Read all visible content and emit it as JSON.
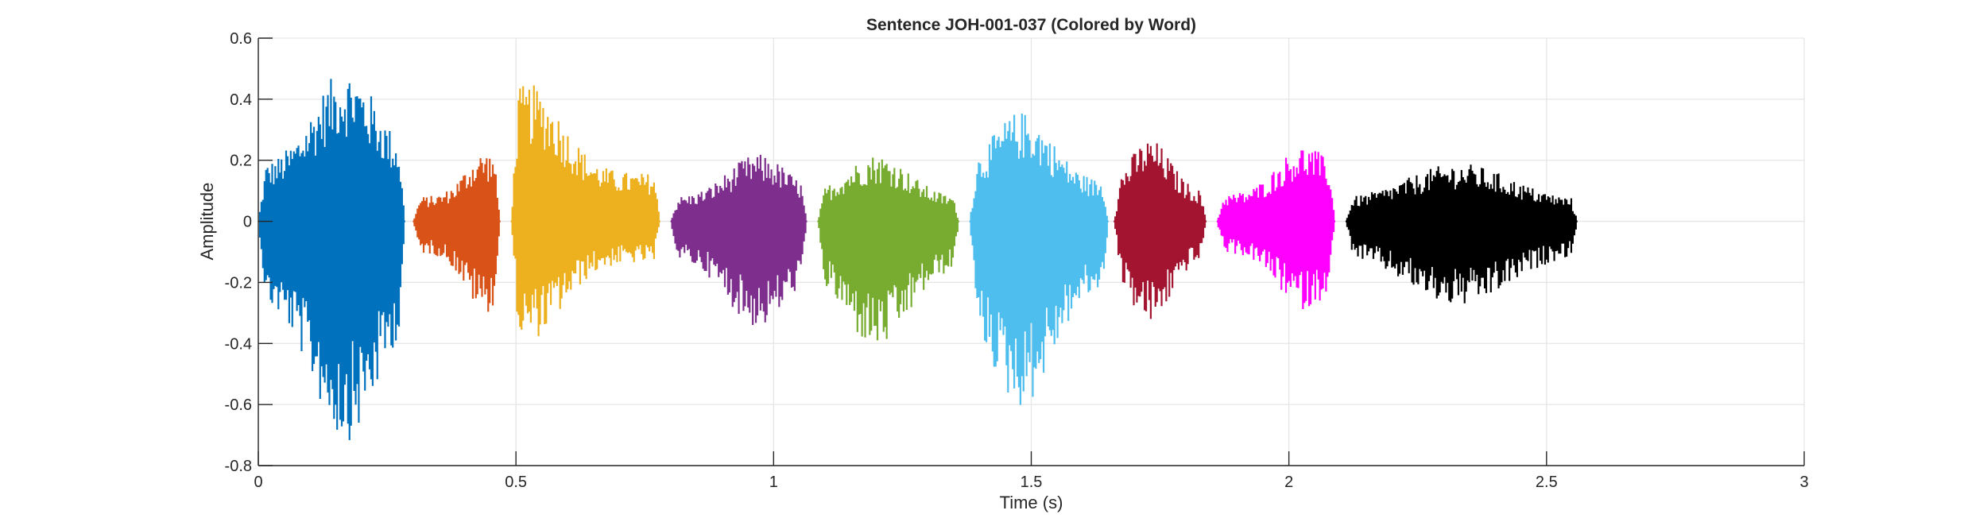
{
  "chart_data": {
    "type": "line",
    "title": "Sentence JOH-001-037 (Colored by Word)",
    "xlabel": "Time (s)",
    "ylabel": "Amplitude",
    "xlim": [
      0,
      3
    ],
    "ylim": [
      -0.8,
      0.6
    ],
    "xticks": [
      0,
      0.5,
      1,
      1.5,
      2,
      2.5,
      3
    ],
    "xtick_labels": [
      "0",
      "0.5",
      "1",
      "1.5",
      "2",
      "2.5",
      "3"
    ],
    "yticks": [
      0.6,
      0.4,
      0.2,
      0,
      -0.2,
      -0.4,
      -0.6,
      -0.8
    ],
    "ytick_labels": [
      "0.6",
      "0.4",
      "0.2",
      "0",
      "-0.2",
      "-0.4",
      "-0.6",
      "-0.8"
    ],
    "grid": true,
    "series": [
      {
        "color": "#0072BD",
        "start": 0.0,
        "end": 0.285,
        "max_amp": 0.5,
        "min_amp": -0.72,
        "peak_t": 0.17
      },
      {
        "color": "#D95319",
        "start": 0.3,
        "end": 0.47,
        "max_amp": 0.23,
        "min_amp": -0.3,
        "peak_t": 0.44
      },
      {
        "color": "#EDB120",
        "start": 0.49,
        "end": 0.78,
        "max_amp": 0.45,
        "min_amp": -0.39,
        "peak_t": 0.525
      },
      {
        "color": "#7E2F8E",
        "start": 0.8,
        "end": 1.065,
        "max_amp": 0.22,
        "min_amp": -0.35,
        "peak_t": 0.97
      },
      {
        "color": "#77AC30",
        "start": 1.085,
        "end": 1.36,
        "max_amp": 0.22,
        "min_amp": -0.42,
        "peak_t": 1.2
      },
      {
        "color": "#4DBEEE",
        "start": 1.38,
        "end": 1.65,
        "max_amp": 0.36,
        "min_amp": -0.61,
        "peak_t": 1.48
      },
      {
        "color": "#A2142F",
        "start": 1.66,
        "end": 1.84,
        "max_amp": 0.27,
        "min_amp": -0.34,
        "peak_t": 1.73
      },
      {
        "color": "#FF00FF",
        "start": 1.86,
        "end": 2.09,
        "max_amp": 0.25,
        "min_amp": -0.29,
        "peak_t": 2.03
      },
      {
        "color": "#000000",
        "start": 2.11,
        "end": 2.56,
        "max_amp": 0.19,
        "min_amp": -0.28,
        "peak_t": 2.33
      }
    ]
  }
}
